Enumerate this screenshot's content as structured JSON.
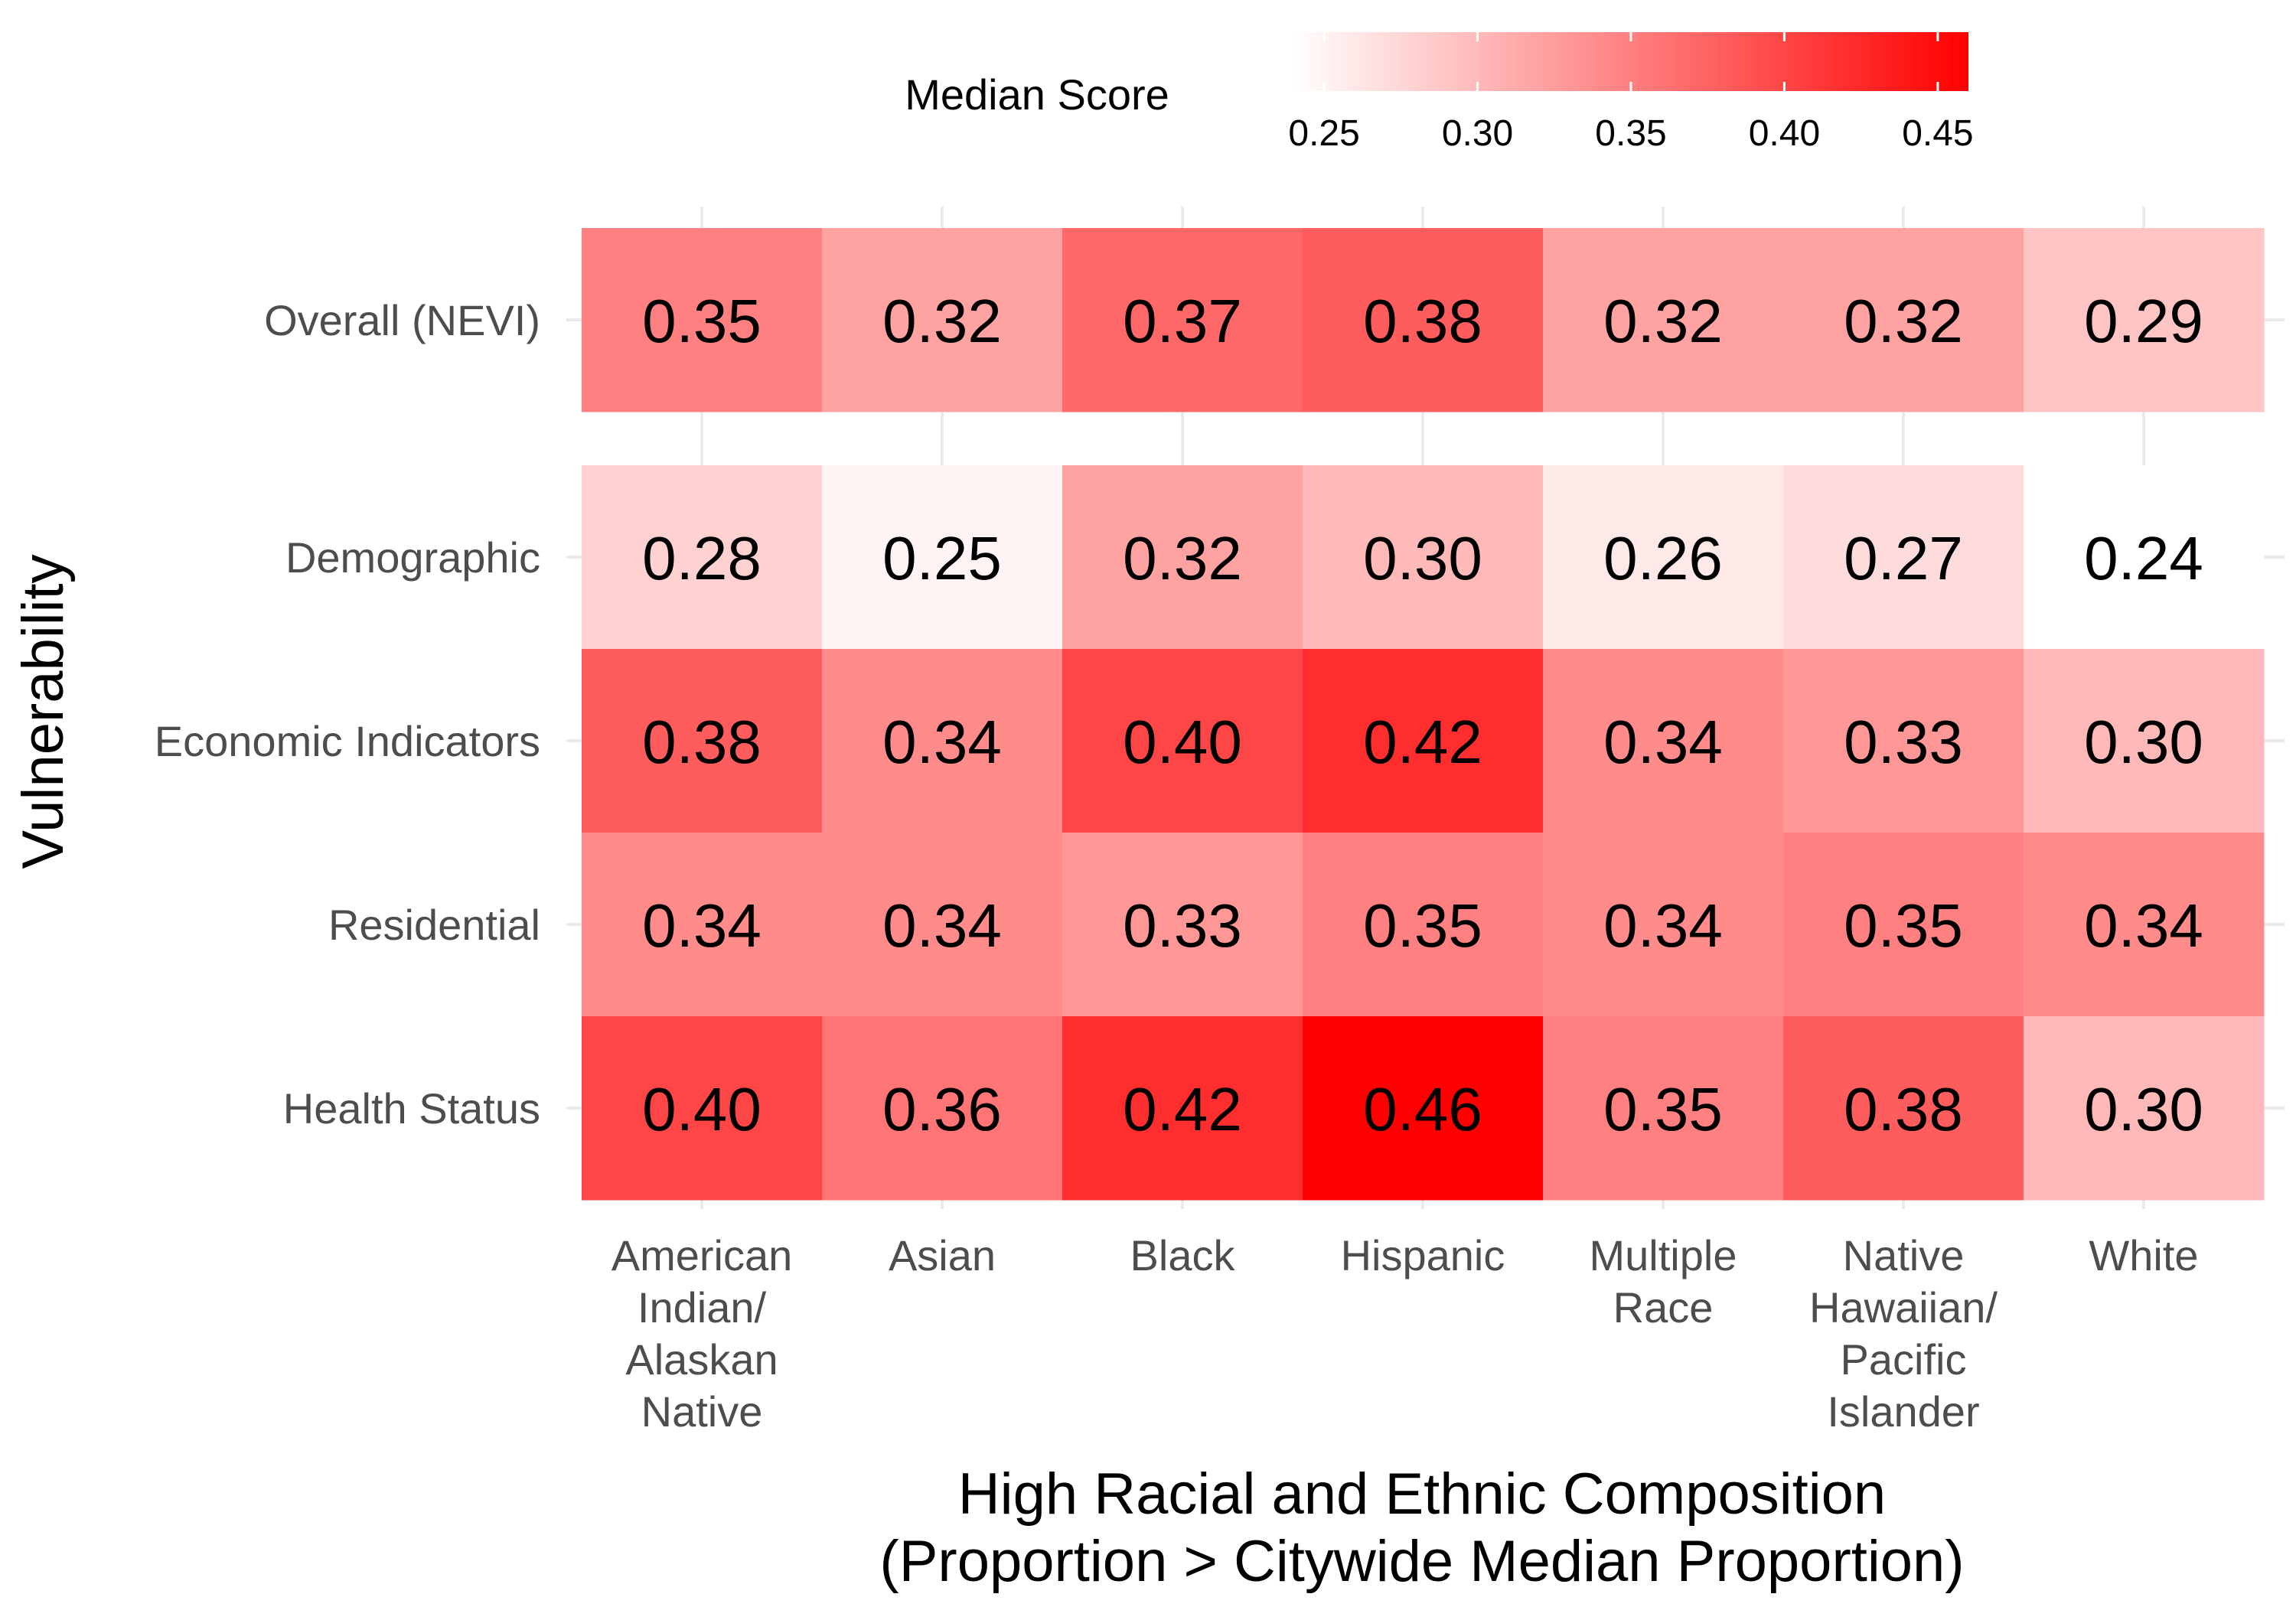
{
  "chart_data": {
    "type": "heatmap",
    "title": "",
    "xlabel_lines": [
      "High Racial and Ethnic Composition",
      "(Proportion > Citywide Median Proportion)"
    ],
    "ylabel": "Vulnerability",
    "x_categories": [
      [
        "American",
        "Indian/",
        "Alaskan",
        "Native"
      ],
      [
        "Asian"
      ],
      [
        "Black"
      ],
      [
        "Hispanic"
      ],
      [
        "Multiple",
        "Race"
      ],
      [
        "Native",
        "Hawaiian/",
        "Pacific",
        "Islander"
      ],
      [
        "White"
      ]
    ],
    "panels": [
      {
        "rows": [
          "Overall (NEVI)"
        ],
        "values": [
          [
            0.35,
            0.32,
            0.37,
            0.38,
            0.32,
            0.32,
            0.29
          ]
        ]
      },
      {
        "rows": [
          "Demographic",
          "Economic Indicators",
          "Residential",
          "Health Status"
        ],
        "values": [
          [
            0.28,
            0.25,
            0.32,
            0.3,
            0.26,
            0.27,
            0.24
          ],
          [
            0.38,
            0.34,
            0.4,
            0.42,
            0.34,
            0.33,
            0.3
          ],
          [
            0.34,
            0.34,
            0.33,
            0.35,
            0.34,
            0.35,
            0.34
          ],
          [
            0.4,
            0.36,
            0.42,
            0.46,
            0.35,
            0.38,
            0.3
          ]
        ]
      }
    ],
    "legend": {
      "title": "Median Score",
      "ticks": [
        "0.25",
        "0.30",
        "0.35",
        "0.40",
        "0.45"
      ],
      "range": [
        0.24,
        0.46
      ],
      "low_color": "#ffffff",
      "high_color": "#ff0000",
      "placement": "top"
    },
    "grid": true
  }
}
